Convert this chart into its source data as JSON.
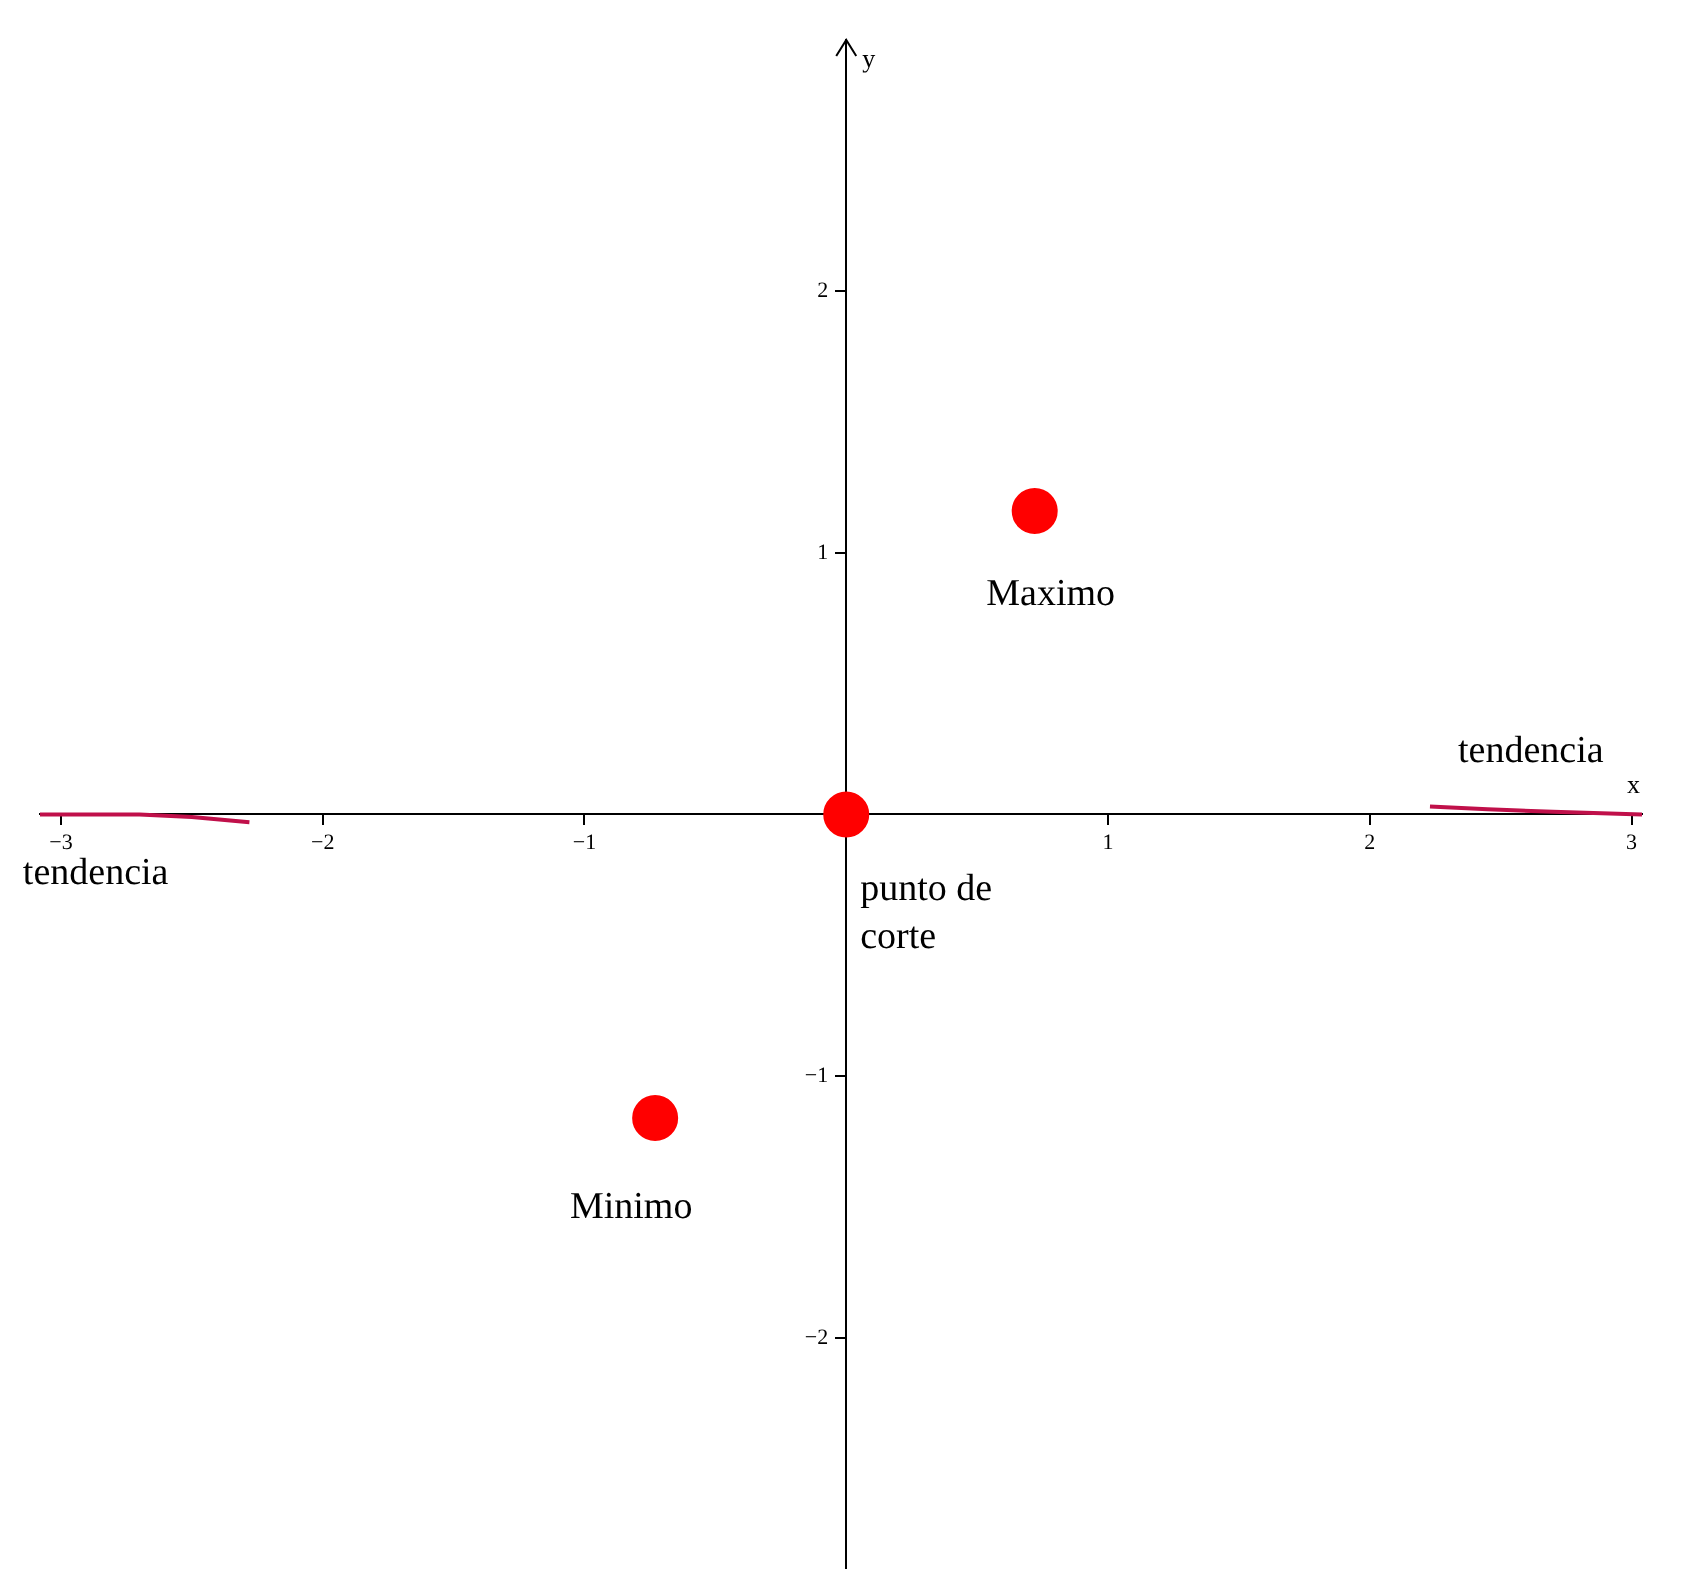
{
  "chart_data": {
    "type": "scatter",
    "xlabel": "x",
    "ylabel": "y",
    "xlim": [
      -3.08,
      3.04
    ],
    "ylim": [
      -2.88,
      2.96
    ],
    "xticks": [
      {
        "value": -3,
        "label": "−3"
      },
      {
        "value": -2,
        "label": "−2"
      },
      {
        "value": -1,
        "label": "−1"
      },
      1,
      2,
      3
    ],
    "yticks": [
      {
        "value": -2,
        "label": "−2"
      },
      {
        "value": -1,
        "label": "−1"
      },
      1,
      2
    ],
    "grid": false,
    "legend": false,
    "series": [
      {
        "color": "#ff0000",
        "marker": "circle",
        "x": [
          0.72,
          0,
          -0.73
        ],
        "values": [
          1.16,
          0,
          -1.16
        ]
      },
      {
        "type": "line",
        "color": "#c0104a",
        "marker": "none",
        "x": [
          -3.08,
          -2.7,
          -2.5,
          -2.28
        ],
        "values": [
          0,
          0,
          -0.01,
          -0.03
        ]
      },
      {
        "type": "line",
        "color": "#c0104a",
        "marker": "none",
        "x": [
          2.23,
          2.45,
          2.7,
          3.04
        ],
        "values": [
          0.03,
          0.02,
          0.01,
          0
        ]
      }
    ],
    "annotations": [
      {
        "text": "Maximo",
        "x": 0.72,
        "y": 1.16
      },
      {
        "text": "punto de corte",
        "x": 0,
        "y": 0
      },
      {
        "text": "Minimo",
        "x": -0.73,
        "y": -1.16
      },
      {
        "text": "tendencia",
        "x": -2.6,
        "y": 0
      },
      {
        "text": "tendencia",
        "x": 2.6,
        "y": 0.01
      }
    ]
  }
}
